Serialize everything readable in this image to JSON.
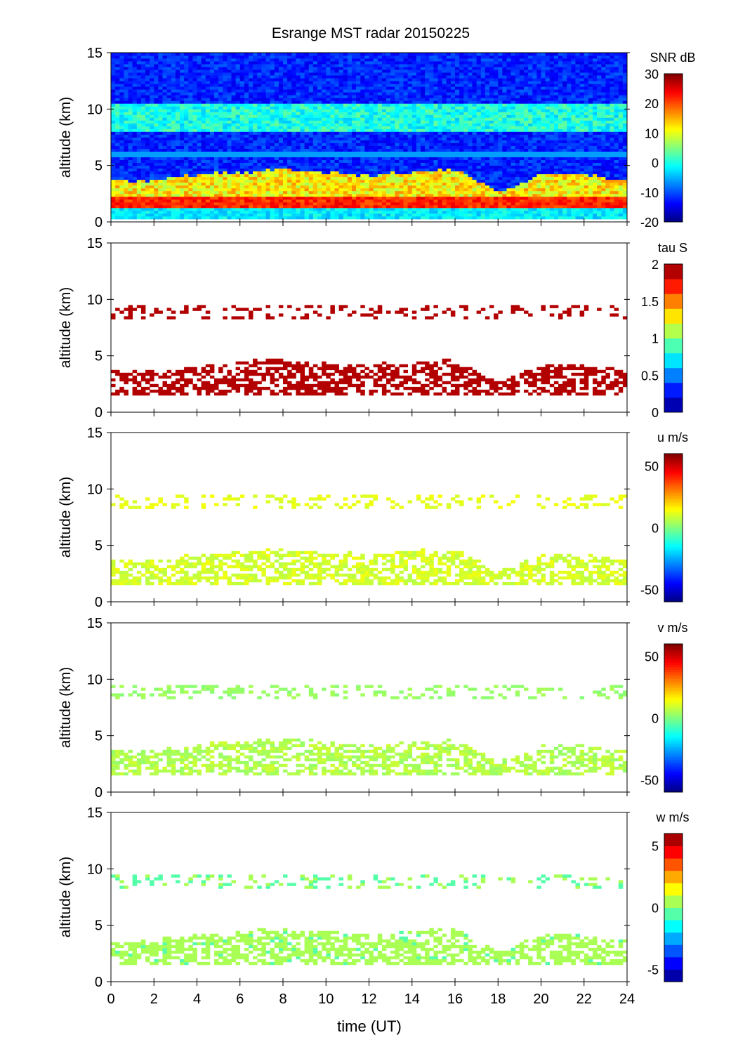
{
  "chart_data": {
    "type": "heatmap",
    "title": "Esrange MST radar 20150225",
    "xlabel": "time (UT)",
    "ylabel": "altitude (km)",
    "xlim": [
      0,
      24
    ],
    "ylim": [
      0,
      15
    ],
    "xticks": [
      "0",
      "2",
      "4",
      "6",
      "8",
      "10",
      "12",
      "14",
      "16",
      "18",
      "20",
      "22",
      "24"
    ],
    "yticks": [
      "0",
      "5",
      "10",
      "15"
    ],
    "lower_layer_top_km": [
      [
        0,
        3.5
      ],
      [
        2,
        3.5
      ],
      [
        4,
        4
      ],
      [
        6,
        4.3
      ],
      [
        8,
        4.5
      ],
      [
        10,
        4.3
      ],
      [
        12,
        4
      ],
      [
        14,
        4.3
      ],
      [
        16,
        4.5
      ],
      [
        17,
        3.5
      ],
      [
        18,
        2.5
      ],
      [
        19,
        3.2
      ],
      [
        20,
        4
      ],
      [
        22,
        4
      ],
      [
        24,
        3.5
      ]
    ],
    "lower_layer_bottom_km": 1.5,
    "upper_layer_km": [
      8.3,
      9.5
    ],
    "panels": [
      {
        "name": "snr",
        "cbar_label": "SNR dB",
        "clim": [
          -20,
          30
        ],
        "cticks": [
          "30",
          "20",
          "10",
          "0",
          "-10",
          "-20"
        ],
        "ctick_values": [
          30,
          20,
          10,
          0,
          -10,
          -20
        ],
        "levels": 64,
        "background": -12,
        "upper_value": 0,
        "lower_value": 12,
        "near_ground_value": 22,
        "line_6km": -6,
        "coverage": 1.0
      },
      {
        "name": "tau",
        "cbar_label": "tau S",
        "clim": [
          0,
          2
        ],
        "cticks": [
          "2",
          "1.5",
          "1",
          "0.5",
          "0"
        ],
        "ctick_values": [
          2,
          1.5,
          1,
          0.5,
          0
        ],
        "levels": 10,
        "upper_value": 2,
        "lower_value": 2,
        "coverage": 0.6
      },
      {
        "name": "u",
        "cbar_label": "u m/s",
        "clim": [
          -60,
          60
        ],
        "cticks": [
          "50",
          "0",
          "-50"
        ],
        "ctick_values": [
          50,
          0,
          -50
        ],
        "levels": 64,
        "upper_value": 12,
        "lower_value": 10,
        "coverage": 0.6
      },
      {
        "name": "v",
        "cbar_label": "v m/s",
        "clim": [
          -60,
          60
        ],
        "cticks": [
          "50",
          "0",
          "-50"
        ],
        "ctick_values": [
          50,
          0,
          -50
        ],
        "levels": 64,
        "upper_value": 3,
        "lower_value": 6,
        "coverage": 0.6
      },
      {
        "name": "w",
        "cbar_label": "w m/s",
        "clim": [
          -6,
          6
        ],
        "cticks": [
          "5",
          "0",
          "-5"
        ],
        "ctick_values": [
          5,
          0,
          -5
        ],
        "levels": 12,
        "upper_value": 0,
        "lower_value": 0.3,
        "coverage": 0.6
      }
    ]
  }
}
